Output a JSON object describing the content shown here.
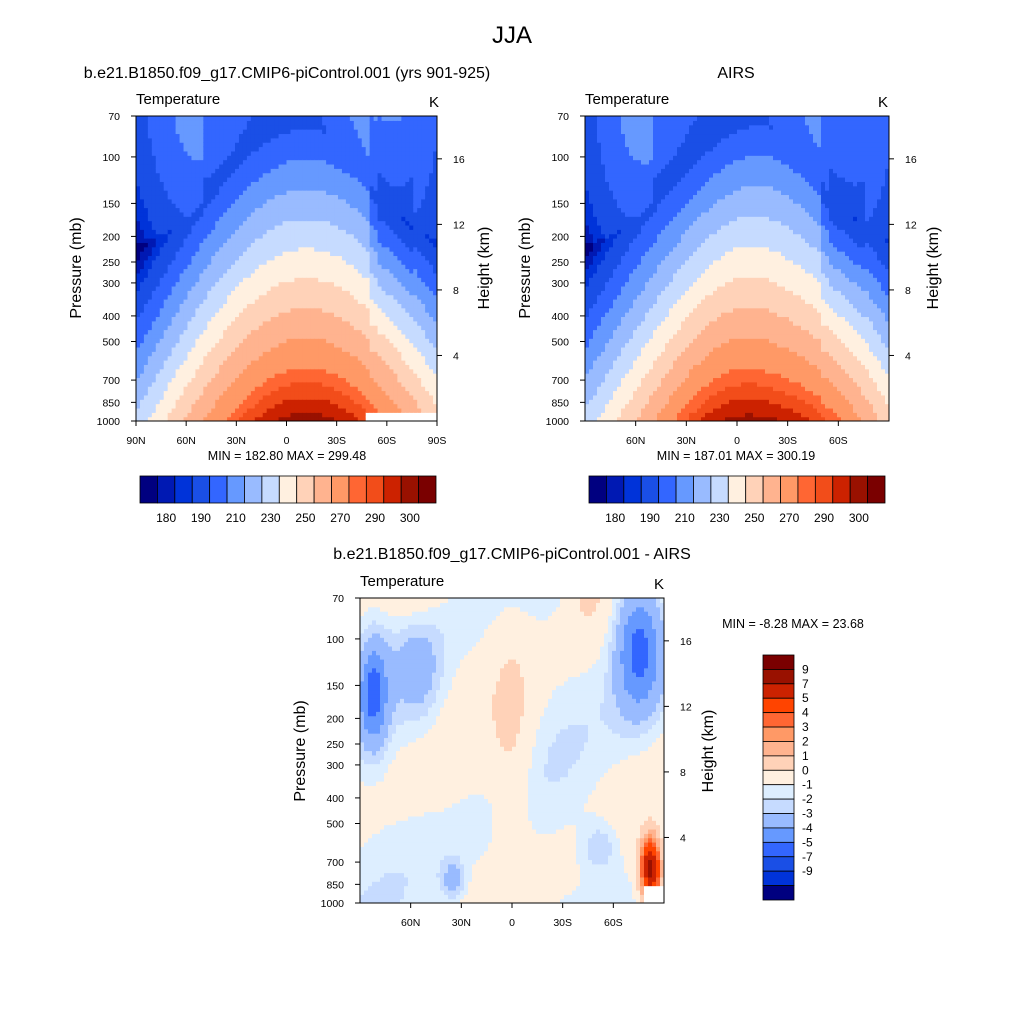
{
  "figure": {
    "title": "JJA"
  },
  "colors": {
    "temperature_fills": [
      "#000080",
      "#0019b3",
      "#0033d9",
      "#1a4fe6",
      "#3366ff",
      "#6699ff",
      "#99bbff",
      "#c6dbff",
      "#fff0e0",
      "#ffd2b8",
      "#ffb38f",
      "#ff9966",
      "#ff6633",
      "#f24d1a",
      "#cc2200",
      "#991100",
      "#7a0000"
    ],
    "difference_fills": [
      "#000080",
      "#0019b3",
      "#0033d9",
      "#1a4fe6",
      "#3366ff",
      "#6699ff",
      "#99bbff",
      "#c6dbff",
      "#ddeeff",
      "#fff0e0",
      "#ffd2b8",
      "#ffb38f",
      "#ff9966",
      "#ff6633",
      "#ff4400",
      "#cc2200",
      "#991100",
      "#7a0000"
    ]
  },
  "chart_data": [
    {
      "type": "heatmap",
      "title": "b.e21.B1850.f09_g17.CMIP6-piControl.001 (yrs 901-925)",
      "left_label": "Temperature",
      "right_label": "K",
      "xlabel": "",
      "ylabel": "Pressure (mb)",
      "ylabel_right": "Height (km)",
      "x_ticks": [
        "90N",
        "60N",
        "30N",
        "0",
        "30S",
        "60S",
        "90S"
      ],
      "x_values": [
        90,
        60,
        30,
        0,
        -30,
        -60,
        -90
      ],
      "xlim": [
        90,
        -90
      ],
      "y_ticks": [
        70,
        100,
        150,
        200,
        250,
        300,
        400,
        500,
        700,
        850,
        1000
      ],
      "height_ticks": [
        4,
        8,
        12,
        16
      ],
      "ylim": [
        1000,
        70
      ],
      "y_scale": "log",
      "stats": "MIN = 182.80  MAX = 299.48",
      "colorbar": {
        "orientation": "horizontal",
        "labels": [
          "180",
          "190",
          "210",
          "230",
          "250",
          "270",
          "290",
          "300"
        ]
      },
      "grid": "off",
      "field": "temperature",
      "lat_range": [
        90,
        -90
      ]
    },
    {
      "type": "heatmap",
      "title": "AIRS",
      "left_label": "Temperature",
      "right_label": "K",
      "xlabel": "",
      "ylabel": "Pressure (mb)",
      "ylabel_right": "Height (km)",
      "x_ticks": [
        "60N",
        "30N",
        "0",
        "30S",
        "60S"
      ],
      "x_values": [
        60,
        30,
        0,
        -30,
        -60
      ],
      "xlim": [
        90,
        -90
      ],
      "y_ticks": [
        70,
        100,
        150,
        200,
        250,
        300,
        400,
        500,
        700,
        850,
        1000
      ],
      "height_ticks": [
        4,
        8,
        12,
        16
      ],
      "ylim": [
        1000,
        70
      ],
      "y_scale": "log",
      "stats": "MIN = 187.01  MAX = 300.19",
      "colorbar": {
        "orientation": "horizontal",
        "labels": [
          "180",
          "190",
          "210",
          "230",
          "250",
          "270",
          "290",
          "300"
        ]
      },
      "grid": "off",
      "field": "temperature",
      "lat_range": [
        90,
        -90
      ]
    },
    {
      "type": "heatmap",
      "title": "b.e21.B1850.f09_g17.CMIP6-piControl.001 - AIRS",
      "left_label": "Temperature",
      "right_label": "K",
      "xlabel": "",
      "ylabel": "Pressure (mb)",
      "ylabel_right": "Height (km)",
      "x_ticks": [
        "60N",
        "30N",
        "0",
        "30S",
        "60S"
      ],
      "x_values": [
        60,
        30,
        0,
        -30,
        -60
      ],
      "xlim": [
        90,
        -90
      ],
      "y_ticks": [
        70,
        100,
        150,
        200,
        250,
        300,
        400,
        500,
        700,
        850,
        1000
      ],
      "height_ticks": [
        4,
        8,
        12,
        16
      ],
      "ylim": [
        1000,
        70
      ],
      "y_scale": "log",
      "stats": "MIN =  -8.28  MAX =  23.68",
      "colorbar": {
        "orientation": "vertical",
        "labels": [
          "9",
          "7",
          "5",
          "4",
          "3",
          "2",
          "1",
          "0",
          "-1",
          "-2",
          "-3",
          "-4",
          "-5",
          "-7",
          "-9"
        ]
      },
      "grid": "off",
      "field": "difference",
      "lat_range": [
        90,
        -90
      ]
    }
  ]
}
